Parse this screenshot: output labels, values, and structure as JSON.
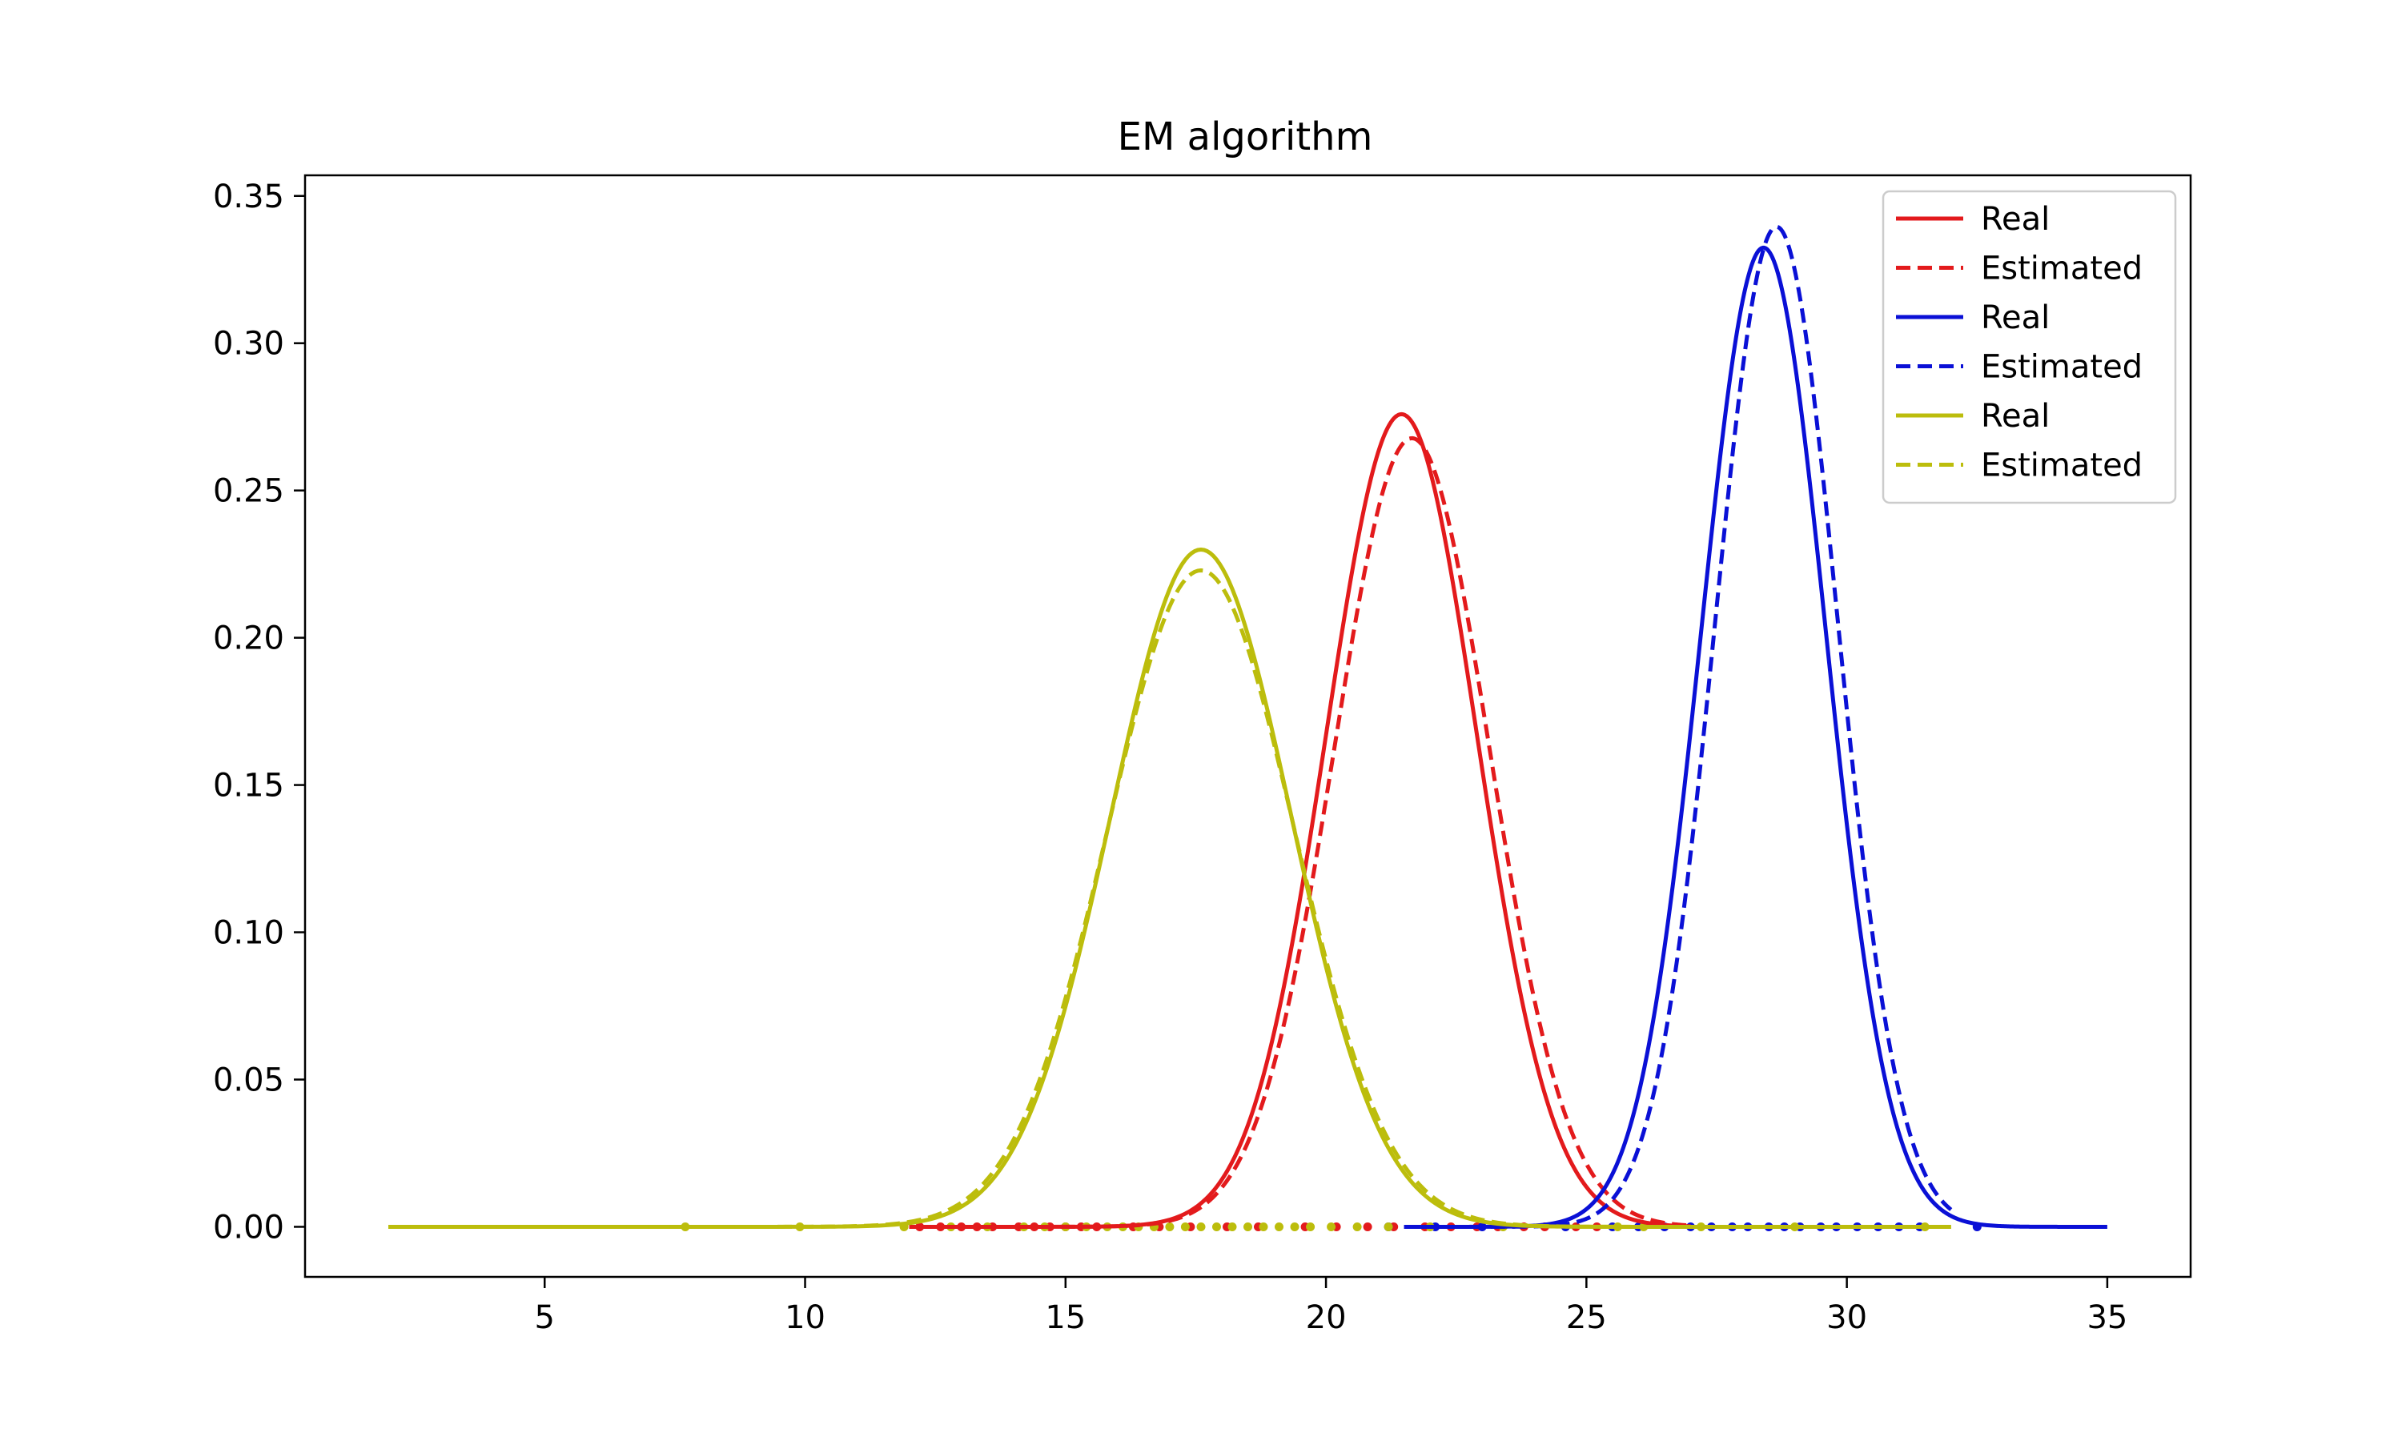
{
  "chart_data": {
    "type": "line",
    "title": "EM algorithm",
    "xlabel": "",
    "ylabel": "",
    "xlim": [
      0.4,
      36.6
    ],
    "ylim": [
      -0.017,
      0.357
    ],
    "xticks": [
      5,
      10,
      15,
      20,
      25,
      30,
      35
    ],
    "yticks": [
      0.0,
      0.05,
      0.1,
      0.15,
      0.2,
      0.25,
      0.3,
      0.35
    ],
    "xtick_labels": [
      "5",
      "10",
      "15",
      "20",
      "25",
      "30",
      "35"
    ],
    "ytick_labels": [
      "0.00",
      "0.05",
      "0.10",
      "0.15",
      "0.20",
      "0.25",
      "0.30",
      "0.35"
    ],
    "grid": false,
    "legend_position": "top-right",
    "curve_model": "normal density N(mu, sigma), drawn from x_range",
    "series": [
      {
        "name": "Real",
        "color": "#e31a1c",
        "style": "solid",
        "mu": 21.45,
        "sigma": 1.446,
        "x_range": [
          12.0,
          27.0
        ]
      },
      {
        "name": "Estimated",
        "color": "#e31a1c",
        "style": "dashed",
        "mu": 21.65,
        "sigma": 1.49,
        "x_range": [
          12.0,
          27.0
        ]
      },
      {
        "name": "Real",
        "color": "#0a10d6",
        "style": "solid",
        "mu": 28.4,
        "sigma": 1.2,
        "x_range": [
          21.5,
          35.0
        ]
      },
      {
        "name": "Estimated",
        "color": "#0a10d6",
        "style": "dashed",
        "mu": 28.65,
        "sigma": 1.175,
        "x_range": [
          21.5,
          32.0
        ]
      },
      {
        "name": "Real",
        "color": "#bcbd0c",
        "style": "solid",
        "mu": 17.6,
        "sigma": 1.735,
        "x_range": [
          2.0,
          32.0
        ]
      },
      {
        "name": "Estimated",
        "color": "#bcbd0c",
        "style": "dashed",
        "mu": 17.6,
        "sigma": 1.79,
        "x_range": [
          2.0,
          32.0
        ]
      }
    ],
    "samples": [
      {
        "color": "#e31a1c",
        "y": 0.0,
        "x": [
          12.2,
          12.6,
          13.0,
          13.3,
          13.6,
          14.1,
          14.4,
          14.7,
          15.0,
          15.3,
          15.6,
          16.3,
          16.8,
          17.4,
          18.1,
          18.7,
          19.6,
          20.2,
          20.8,
          21.3,
          21.9,
          22.4,
          22.9,
          23.3,
          23.8,
          24.2,
          24.8,
          25.2
        ]
      },
      {
        "color": "#0a10d6",
        "y": 0.0,
        "x": [
          21.2,
          22.1,
          23.0,
          24.6,
          25.5,
          26.0,
          26.5,
          27.0,
          27.4,
          27.8,
          28.1,
          28.5,
          28.8,
          29.1,
          29.5,
          29.8,
          30.2,
          30.6,
          31.0,
          31.4,
          32.5
        ]
      },
      {
        "color": "#bcbd0c",
        "y": 0.0,
        "x": [
          7.7,
          9.9,
          11.9,
          12.8,
          13.5,
          14.2,
          14.6,
          15.0,
          15.4,
          15.8,
          16.1,
          16.4,
          16.7,
          17.0,
          17.3,
          17.6,
          17.9,
          18.2,
          18.5,
          18.8,
          19.1,
          19.4,
          19.7,
          20.1,
          20.6,
          21.2,
          22.0,
          23.4,
          25.6,
          26.1,
          27.2,
          29.0,
          31.5
        ]
      }
    ]
  }
}
